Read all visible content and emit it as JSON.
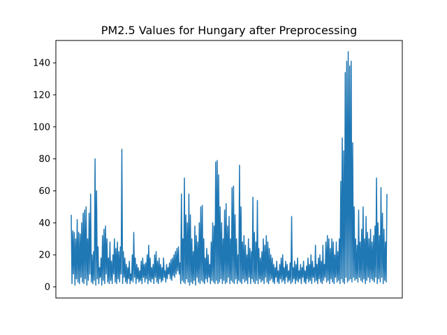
{
  "chart_data": {
    "type": "line",
    "title": "PM2.5 Values for Hungary after Preprocessing",
    "xlabel": "",
    "ylabel": "",
    "ylim": [
      -7,
      154
    ],
    "grid": false,
    "x_ticks_shown": false,
    "y_ticks": [
      0,
      20,
      40,
      60,
      80,
      100,
      120,
      140
    ],
    "series_color": "#1f77b4",
    "series": [
      {
        "values": [
          45,
          2,
          35,
          8,
          34,
          1,
          30,
          5,
          42,
          3,
          34,
          2,
          33,
          6,
          40,
          3,
          46,
          2,
          48,
          5,
          50,
          1,
          30,
          4,
          46,
          8,
          58,
          3,
          20,
          2,
          22,
          4,
          80,
          1,
          60,
          5,
          25,
          2,
          12,
          6,
          18,
          1,
          32,
          4,
          36,
          2,
          38,
          8,
          30,
          3,
          18,
          2,
          28,
          4,
          16,
          2,
          20,
          8,
          30,
          3,
          24,
          2,
          28,
          5,
          22,
          3,
          25,
          8,
          86,
          2,
          22,
          6,
          18,
          3,
          14,
          2,
          12,
          5,
          16,
          2,
          8,
          4,
          20,
          3,
          34,
          6,
          18,
          2,
          14,
          5,
          12,
          3,
          10,
          4,
          16,
          2,
          18,
          6,
          14,
          3,
          15,
          5,
          20,
          2,
          26,
          4,
          18,
          3,
          12,
          5,
          14,
          2,
          20,
          6,
          22,
          3,
          16,
          2,
          18,
          5,
          14,
          3,
          12,
          4,
          18,
          6,
          10,
          3,
          14,
          5,
          12,
          8,
          15,
          5,
          17,
          4,
          18,
          7,
          20,
          6,
          22,
          8,
          24,
          10,
          25,
          8,
          15,
          2,
          58,
          4,
          30,
          3,
          68,
          2,
          45,
          5,
          40,
          3,
          58,
          1,
          45,
          3,
          30,
          2,
          22,
          4,
          38,
          1,
          32,
          6,
          28,
          3,
          40,
          2,
          50,
          4,
          51,
          3,
          30,
          2,
          18,
          5,
          24,
          3,
          20,
          6,
          14,
          2,
          28,
          4,
          40,
          3,
          38,
          2,
          78,
          4,
          79,
          2,
          70,
          3,
          50,
          5,
          40,
          2,
          30,
          4,
          48,
          2,
          52,
          3,
          38,
          6,
          44,
          2,
          30,
          4,
          62,
          3,
          63,
          2,
          45,
          5,
          30,
          2,
          20,
          4,
          76,
          3,
          50,
          2,
          28,
          5,
          32,
          3,
          26,
          4,
          20,
          2,
          30,
          6,
          24,
          2,
          22,
          5,
          56,
          3,
          34,
          2,
          28,
          4,
          54,
          2,
          24,
          5,
          18,
          3,
          22,
          4,
          30,
          2,
          26,
          6,
          32,
          3,
          28,
          2,
          24,
          4,
          20,
          5,
          18,
          3,
          14,
          2,
          12,
          6,
          16,
          3,
          10,
          2,
          14,
          5,
          18,
          3,
          20,
          4,
          12,
          2,
          16,
          6,
          14,
          3,
          10,
          4,
          15,
          2,
          44,
          3,
          12,
          5,
          16,
          2,
          14,
          4,
          18,
          3,
          10,
          5,
          14,
          2,
          12,
          6,
          16,
          3,
          10,
          2,
          13,
          5,
          18,
          3,
          14,
          4,
          20,
          2,
          16,
          6,
          12,
          3,
          26,
          4,
          14,
          2,
          18,
          5,
          20,
          3,
          16,
          2,
          26,
          4,
          14,
          6,
          28,
          3,
          32,
          4,
          30,
          2,
          24,
          5,
          30,
          3,
          28,
          2,
          20,
          6,
          28,
          3,
          22,
          4,
          30,
          2,
          66,
          5,
          93,
          3,
          85,
          2,
          134,
          6,
          141,
          3,
          147,
          4,
          138,
          5,
          141,
          3,
          90,
          6,
          50,
          4,
          30,
          5,
          26,
          3,
          48,
          6,
          28,
          4,
          36,
          3,
          50,
          5,
          30,
          2,
          44,
          4,
          34,
          6,
          30,
          3,
          36,
          5,
          28,
          4,
          32,
          3,
          38,
          6,
          68,
          2,
          40,
          5,
          32,
          3,
          62,
          6,
          46,
          2,
          36,
          4,
          28,
          3,
          58
        ]
      }
    ]
  }
}
